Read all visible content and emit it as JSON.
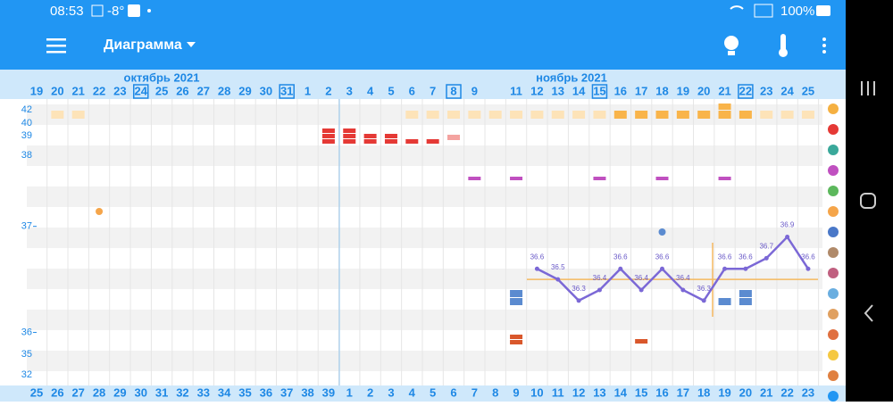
{
  "status": {
    "time": "08:53",
    "temperature": "-8°",
    "battery": "100%"
  },
  "app_bar": {
    "title": "Диаграмма"
  },
  "months": [
    "октябрь 2021",
    "ноябрь 2021"
  ],
  "other_scale_labels": [
    "42",
    "40",
    "39",
    "38",
    "35",
    "32"
  ],
  "chart_data": {
    "type": "line",
    "categories": [
      "19",
      "20",
      "21",
      "22",
      "23",
      "24",
      "25",
      "26",
      "27",
      "28",
      "29",
      "30",
      "31",
      "1",
      "2",
      "3",
      "4",
      "5",
      "6",
      "7",
      "8",
      "9",
      null,
      "11",
      "12",
      "13",
      "14",
      "15",
      "16",
      "17",
      "18",
      "19",
      "20",
      "21",
      "22",
      "23",
      "24",
      "25"
    ],
    "cycle_days": [
      "25",
      "26",
      "27",
      "28",
      "29",
      "30",
      "31",
      "32",
      "33",
      "34",
      "35",
      "36",
      "37",
      "38",
      "39",
      "1",
      "2",
      "3",
      "4",
      "5",
      "6",
      "7",
      "8",
      "9",
      "10",
      "11",
      "12",
      "13",
      "14",
      "15",
      "16",
      "17",
      "18",
      "19",
      "20",
      "21",
      "22",
      "23"
    ],
    "values": [
      null,
      null,
      null,
      null,
      null,
      null,
      null,
      null,
      null,
      null,
      null,
      null,
      null,
      null,
      null,
      null,
      null,
      null,
      null,
      null,
      null,
      null,
      null,
      null,
      36.6,
      36.5,
      36.3,
      36.4,
      36.6,
      36.4,
      36.6,
      36.4,
      36.3,
      36.6,
      36.6,
      36.7,
      36.9,
      36.6
    ],
    "color": "#7b68d6",
    "coverline": 36.5,
    "ylim": [
      35.5,
      38.2
    ],
    "yticks": [
      36,
      37
    ]
  }
}
